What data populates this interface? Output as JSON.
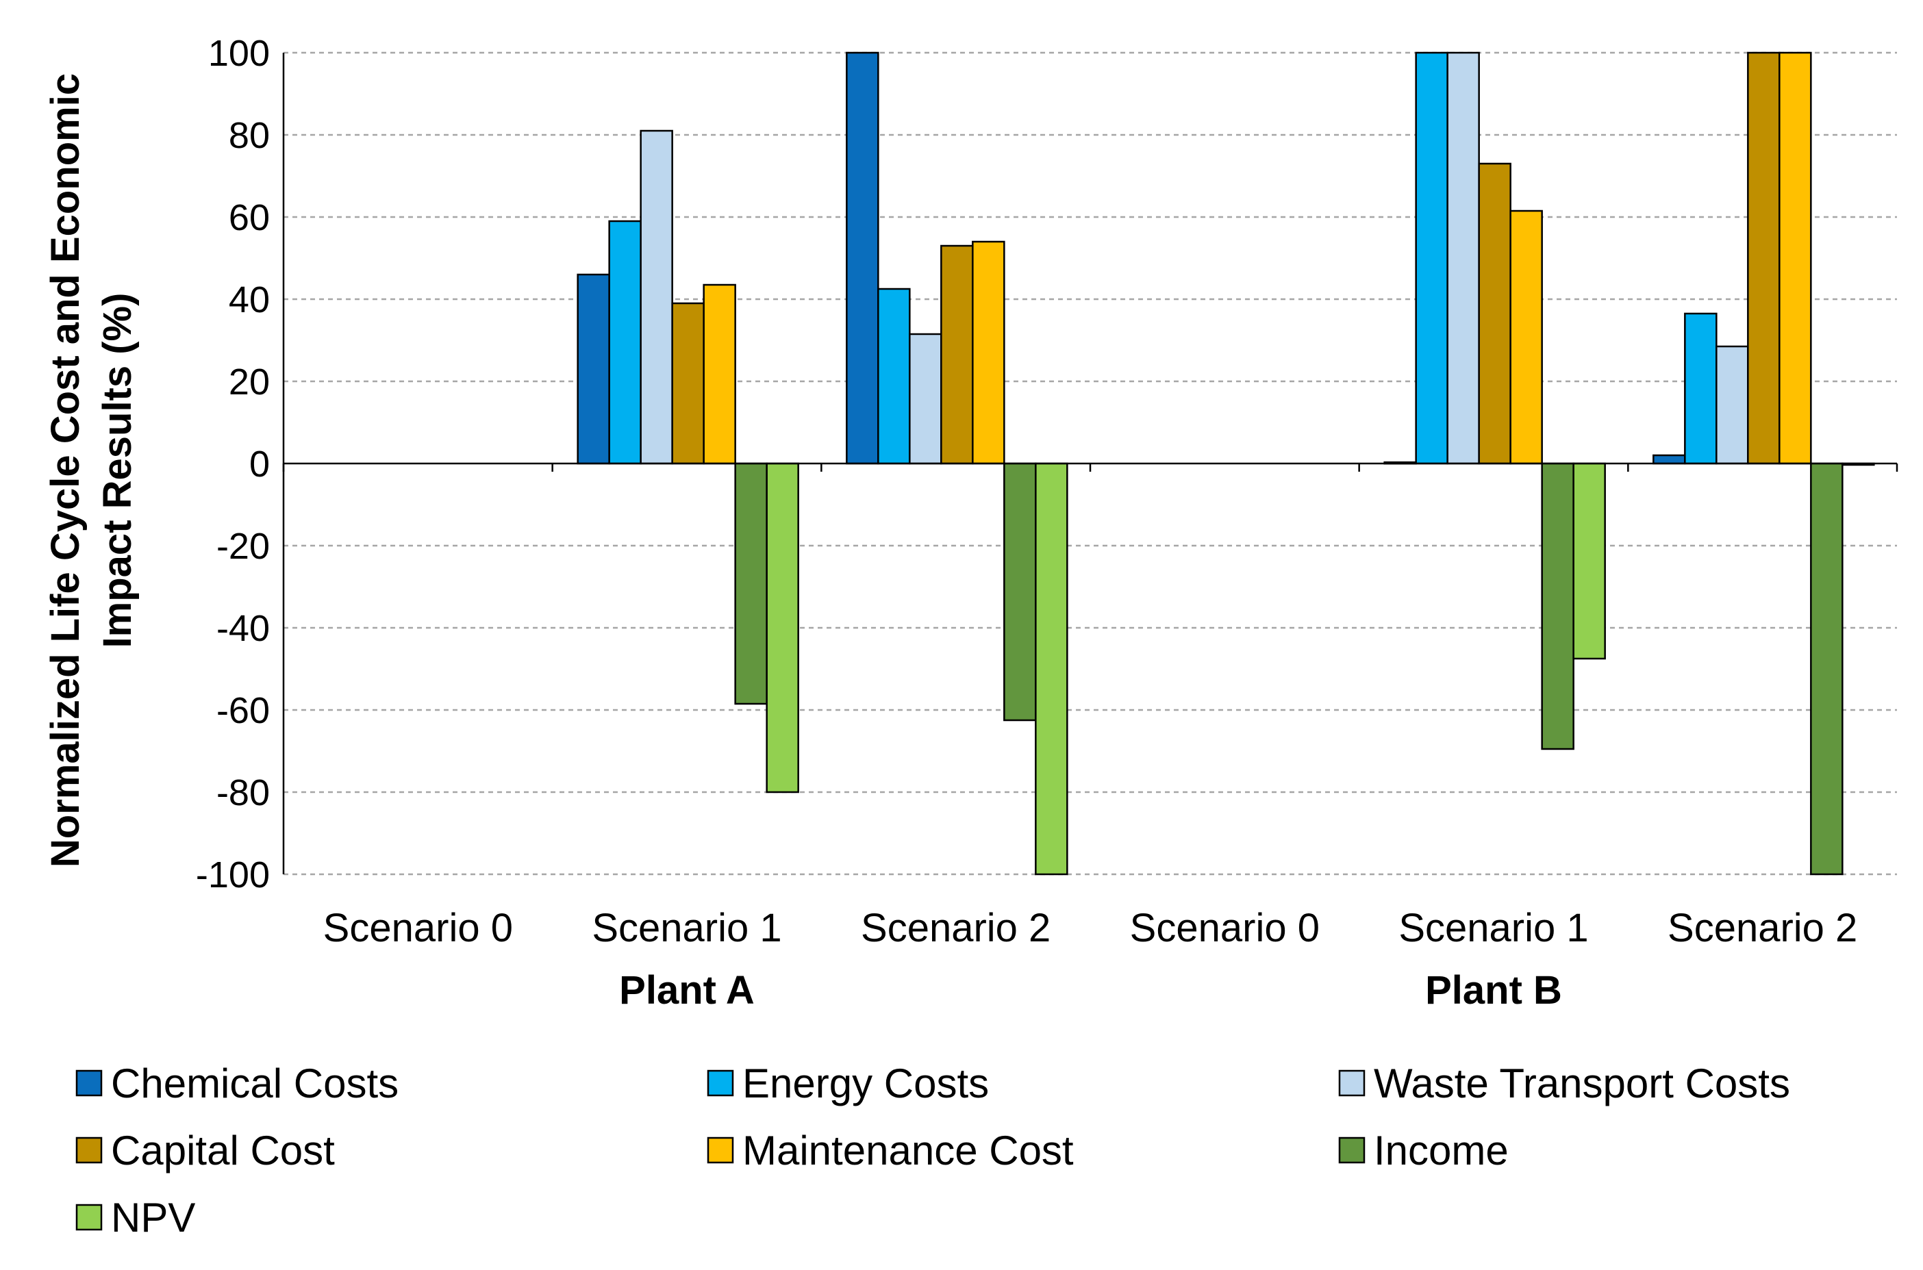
{
  "chart_data": {
    "type": "bar",
    "title": "",
    "xlabel": "",
    "ylabel_lines": [
      "Normalized Life Cycle Cost and Economic",
      "Impact Results (%)"
    ],
    "ylim": [
      -100,
      100
    ],
    "yticks": [
      100,
      80,
      60,
      40,
      20,
      0,
      -20,
      -40,
      -60,
      -80,
      -100
    ],
    "grid": true,
    "legend_position": "bottom",
    "categories": [
      "Scenario 0",
      "Scenario 1",
      "Scenario 2",
      "Scenario 0",
      "Scenario 1",
      "Scenario 2"
    ],
    "groups": [
      {
        "label": "Plant A",
        "categories": [
          0,
          1,
          2
        ]
      },
      {
        "label": "Plant B",
        "categories": [
          3,
          4,
          5
        ]
      }
    ],
    "series": [
      {
        "name": "Chemical Costs",
        "color": "#0A6EBD",
        "values": [
          0,
          46,
          100,
          0,
          0.3,
          2
        ]
      },
      {
        "name": "Energy Costs",
        "color": "#00B0F0",
        "values": [
          0,
          59,
          42.5,
          0,
          100,
          36.5
        ]
      },
      {
        "name": "Waste Transport Costs",
        "color": "#BDD7EE",
        "values": [
          0,
          81,
          31.5,
          0,
          100,
          28.5
        ]
      },
      {
        "name": "Capital Cost",
        "color": "#BF8F00",
        "values": [
          0,
          39,
          53,
          0,
          73,
          100
        ]
      },
      {
        "name": "Maintenance Cost",
        "color": "#FFC000",
        "values": [
          0,
          43.5,
          54,
          0,
          61.5,
          100
        ]
      },
      {
        "name": "Income",
        "color": "#62963E",
        "values": [
          0,
          -58.5,
          -62.5,
          0,
          -69.5,
          -100
        ]
      },
      {
        "name": "NPV",
        "color": "#92D050",
        "values": [
          0,
          -80,
          -100,
          0,
          -47.5,
          -0.3
        ]
      }
    ]
  }
}
